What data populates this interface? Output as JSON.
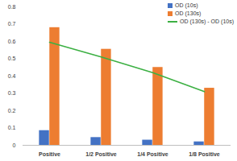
{
  "chart_data": {
    "type": "bar",
    "categories": [
      "Positive",
      "1/2 Positive",
      "1/4 Positive",
      "1/8 Positive"
    ],
    "series": [
      {
        "name": "OD (10s)",
        "color": "#4472c4",
        "values": [
          0.085,
          0.045,
          0.03,
          0.02
        ]
      },
      {
        "name": "OD (130s)",
        "color": "#ed7d31",
        "values": [
          0.68,
          0.555,
          0.45,
          0.33
        ]
      },
      {
        "name": "OD (130s) - OD (10s)",
        "type": "line",
        "color": "#3cb043",
        "values": [
          0.595,
          0.51,
          0.42,
          0.31
        ]
      }
    ],
    "ylim": [
      0,
      0.8
    ],
    "yticks": [
      0,
      0.1,
      0.2,
      0.3,
      0.4,
      0.5,
      0.6,
      0.7,
      0.8
    ],
    "legend": "top-right",
    "grid": false
  }
}
